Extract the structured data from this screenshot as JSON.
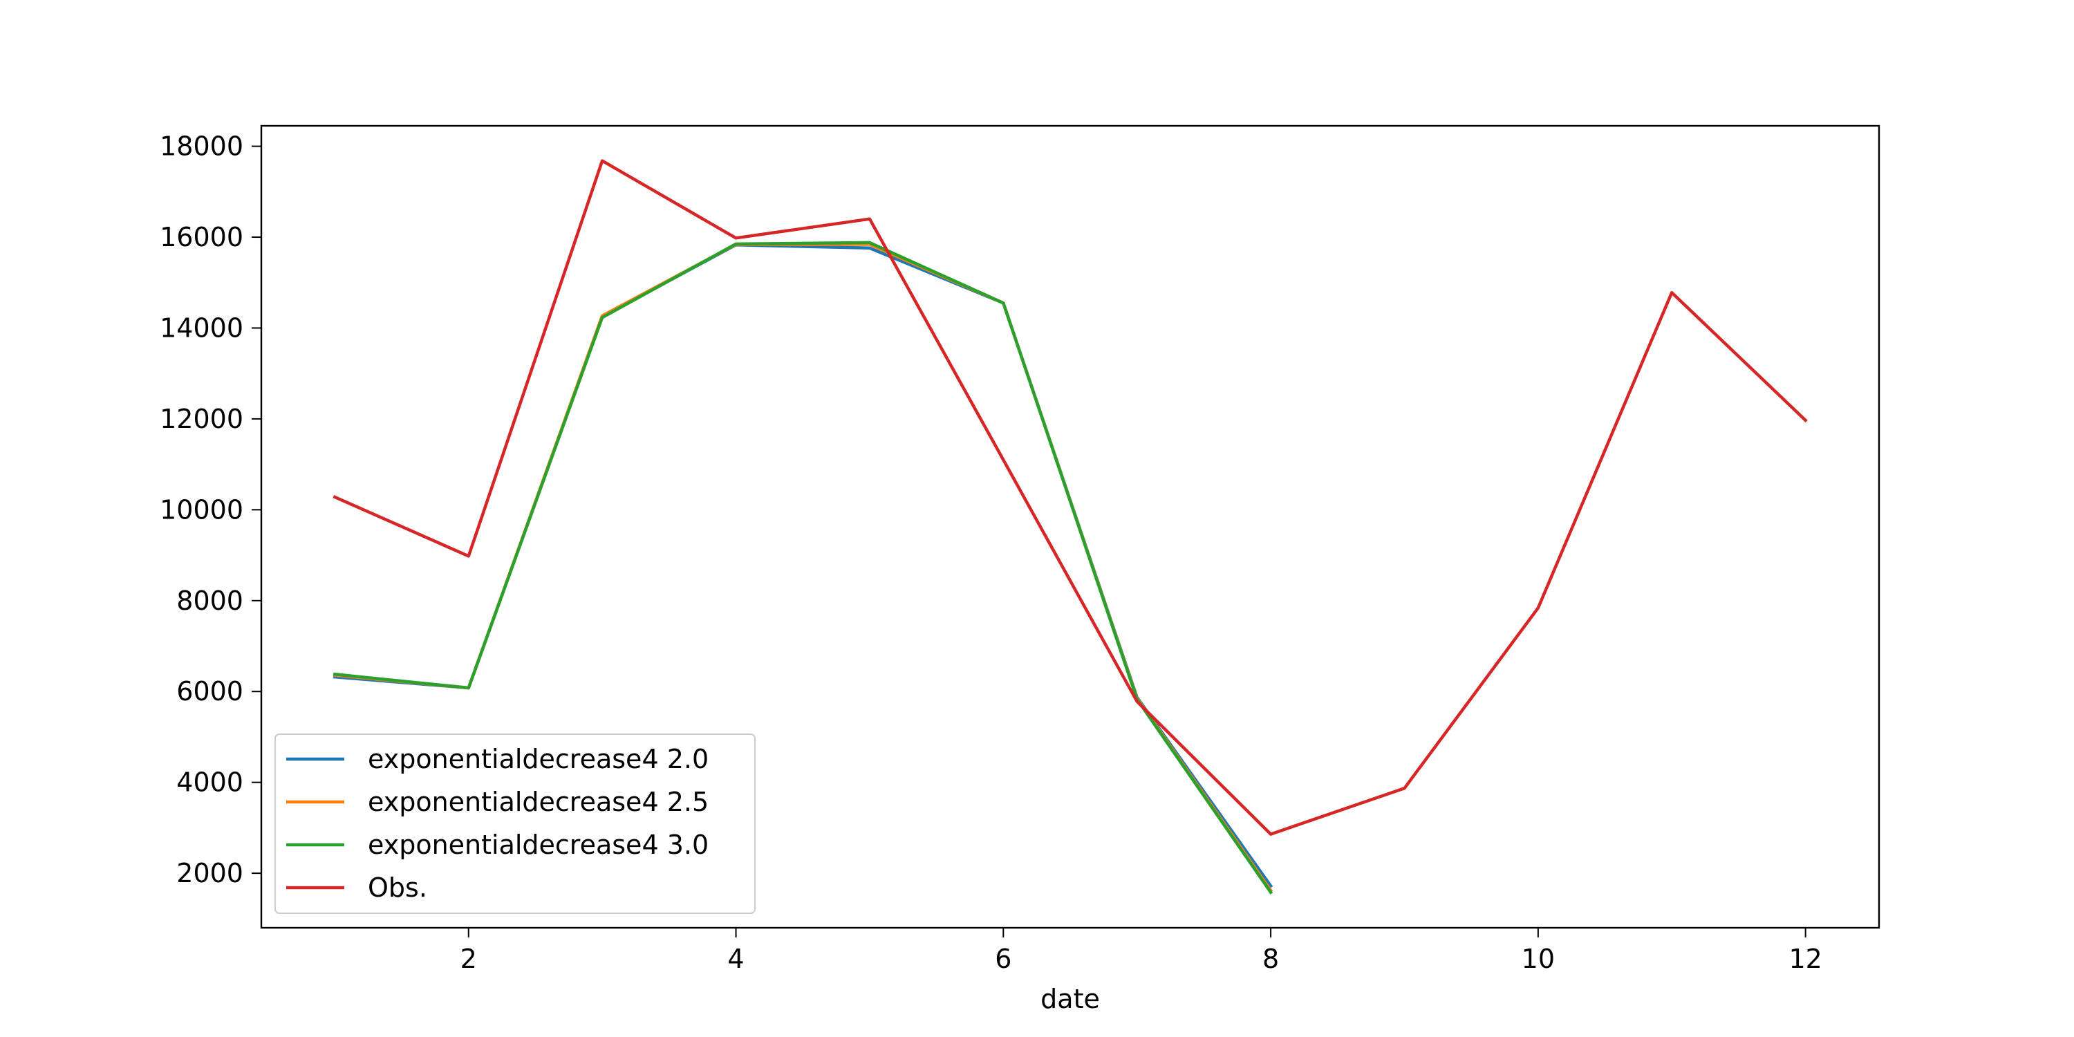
{
  "chart_data": {
    "type": "line",
    "title": "",
    "xlabel": "date",
    "ylabel": "",
    "xlim": [
      0.45,
      12.55
    ],
    "ylim": [
      800,
      18450
    ],
    "xticks": [
      2,
      4,
      6,
      8,
      10,
      12
    ],
    "yticks": [
      2000,
      4000,
      6000,
      8000,
      10000,
      12000,
      14000,
      16000,
      18000
    ],
    "grid": false,
    "legend_position": "lower-left",
    "series": [
      {
        "name": "exponentialdecrease4 2.0",
        "color": "#1f77b4",
        "x": [
          1,
          2,
          3,
          4,
          5,
          6,
          7,
          8
        ],
        "y": [
          6320,
          6080,
          14250,
          15830,
          15760,
          14550,
          5870,
          1720
        ]
      },
      {
        "name": "exponentialdecrease4 2.5",
        "color": "#ff7f0e",
        "x": [
          1,
          2,
          3,
          4,
          5,
          6,
          7,
          8
        ],
        "y": [
          6360,
          6080,
          14270,
          15840,
          15840,
          14550,
          5850,
          1620
        ]
      },
      {
        "name": "exponentialdecrease4 3.0",
        "color": "#2ca02c",
        "x": [
          1,
          2,
          3,
          4,
          5,
          6,
          7,
          8
        ],
        "y": [
          6380,
          6080,
          14230,
          15850,
          15880,
          14550,
          5830,
          1580
        ]
      },
      {
        "name": "Obs.",
        "color": "#d62728",
        "x": [
          1,
          2,
          3,
          4,
          5,
          6,
          7,
          8,
          9,
          10,
          11,
          12
        ],
        "y": [
          10280,
          8980,
          17680,
          15980,
          16400,
          11100,
          5780,
          2860,
          3870,
          7840,
          14780,
          11970
        ]
      }
    ]
  }
}
